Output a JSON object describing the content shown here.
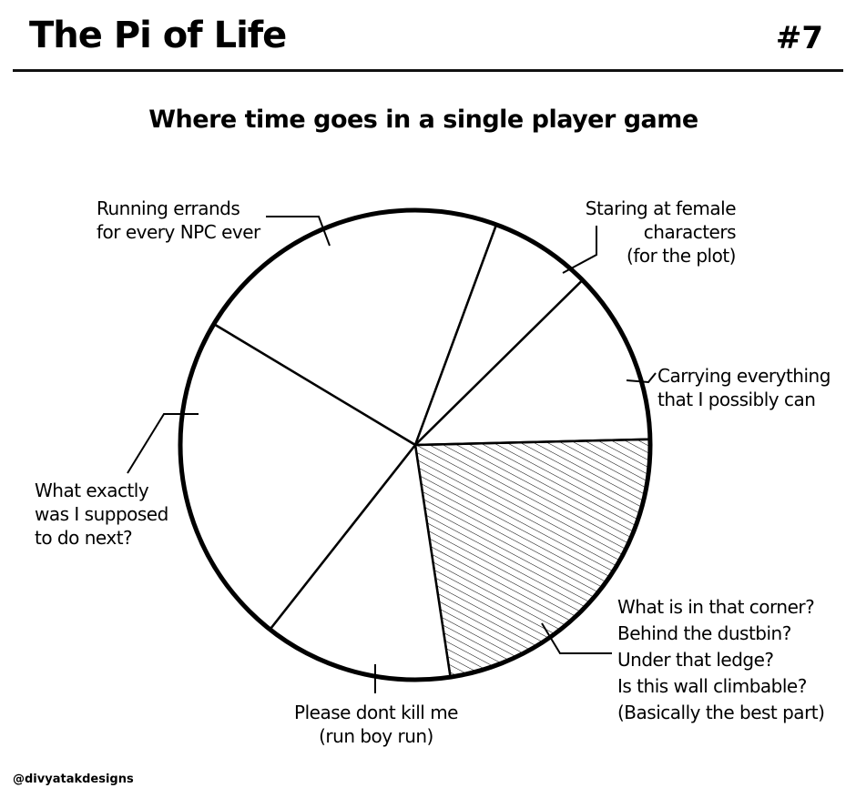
{
  "header": {
    "title": "The Pi of Life",
    "number": "#7"
  },
  "credit": "@divyatakdesigns",
  "chart_data": {
    "type": "pie",
    "title": "Where time goes in a single player game",
    "start": "top, clockwise",
    "slices": [
      {
        "label": [
          "Running errands",
          "for every NPC ever"
        ],
        "value": 22,
        "hatched": false
      },
      {
        "label": [
          "Staring at female",
          "characters",
          "(for the plot)"
        ],
        "value": 7,
        "hatched": false
      },
      {
        "label": [
          "Carrying everything",
          "that I possibly can"
        ],
        "value": 12,
        "hatched": false
      },
      {
        "label": [
          "What is in that corner?",
          "Behind the dustbin?",
          "Under that ledge?",
          "Is this wall climbable?",
          "(Basically the best part)"
        ],
        "value": 23,
        "hatched": true
      },
      {
        "label": [
          "Please dont kill me",
          "(run boy run)"
        ],
        "value": 13,
        "hatched": false
      },
      {
        "label": [
          "What exactly",
          "was I supposed",
          "to do next?"
        ],
        "value": 23,
        "hatched": false
      }
    ],
    "start_angle_deg": -59,
    "colors": {
      "fill": "#ffffff",
      "stroke": "#000000",
      "hatch": "#000000"
    }
  }
}
